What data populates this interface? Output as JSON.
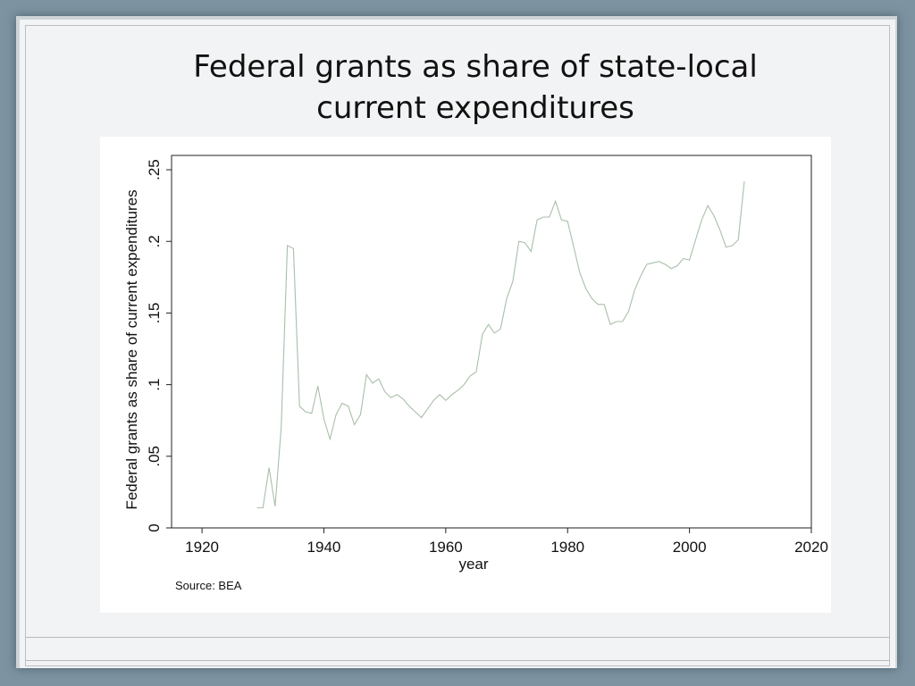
{
  "slide": {
    "title_line1": "Federal grants as share of state-local",
    "title_line2": "current expenditures"
  },
  "chart_data": {
    "type": "line",
    "title": "",
    "xlabel": "year",
    "ylabel": "Federal grants as share of current expenditures",
    "xlim": [
      1915,
      2020
    ],
    "ylim": [
      0,
      0.26
    ],
    "x_ticks": [
      1920,
      1940,
      1960,
      1980,
      2000,
      2020
    ],
    "x_tick_labels": [
      "1920",
      "1940",
      "1960",
      "1980",
      "2000",
      "2020"
    ],
    "y_ticks": [
      0,
      0.05,
      0.1,
      0.15,
      0.2,
      0.25
    ],
    "y_tick_labels": [
      "0",
      ".05",
      ".1",
      ".15",
      ".2",
      ".25"
    ],
    "grid": false,
    "line_color": "#a9bfa9",
    "note": "Source:  BEA",
    "series": [
      {
        "x": [
          1929,
          1930,
          1931,
          1932,
          1933,
          1934,
          1935,
          1936,
          1937,
          1938,
          1939,
          1940,
          1941,
          1942,
          1943,
          1944,
          1945,
          1946,
          1947,
          1948,
          1949,
          1950,
          1951,
          1952,
          1953,
          1954,
          1955,
          1956,
          1957,
          1958,
          1959,
          1960,
          1961,
          1962,
          1963,
          1964,
          1965,
          1966,
          1967,
          1968,
          1969,
          1970,
          1971,
          1972,
          1973,
          1974,
          1975,
          1976,
          1977,
          1978,
          1979,
          1980,
          1981,
          1982,
          1983,
          1984,
          1985,
          1986,
          1987,
          1988,
          1989,
          1990,
          1991,
          1992,
          1993,
          1994,
          1995,
          1996,
          1997,
          1998,
          1999,
          2000,
          2001,
          2002,
          2003,
          2004,
          2005,
          2006,
          2007,
          2008,
          2009
        ],
        "y": [
          0.014,
          0.014,
          0.042,
          0.015,
          0.07,
          0.197,
          0.195,
          0.085,
          0.081,
          0.08,
          0.099,
          0.076,
          0.062,
          0.079,
          0.087,
          0.085,
          0.072,
          0.079,
          0.107,
          0.101,
          0.104,
          0.095,
          0.091,
          0.093,
          0.09,
          0.085,
          0.081,
          0.077,
          0.083,
          0.089,
          0.093,
          0.089,
          0.093,
          0.096,
          0.1,
          0.106,
          0.109,
          0.135,
          0.142,
          0.136,
          0.139,
          0.16,
          0.172,
          0.2,
          0.199,
          0.193,
          0.215,
          0.217,
          0.217,
          0.228,
          0.215,
          0.214,
          0.196,
          0.178,
          0.167,
          0.16,
          0.156,
          0.156,
          0.142,
          0.144,
          0.144,
          0.151,
          0.166,
          0.176,
          0.184,
          0.185,
          0.186,
          0.184,
          0.181,
          0.183,
          0.188,
          0.187,
          0.201,
          0.215,
          0.225,
          0.218,
          0.208,
          0.196,
          0.197,
          0.201,
          0.242
        ]
      }
    ]
  }
}
